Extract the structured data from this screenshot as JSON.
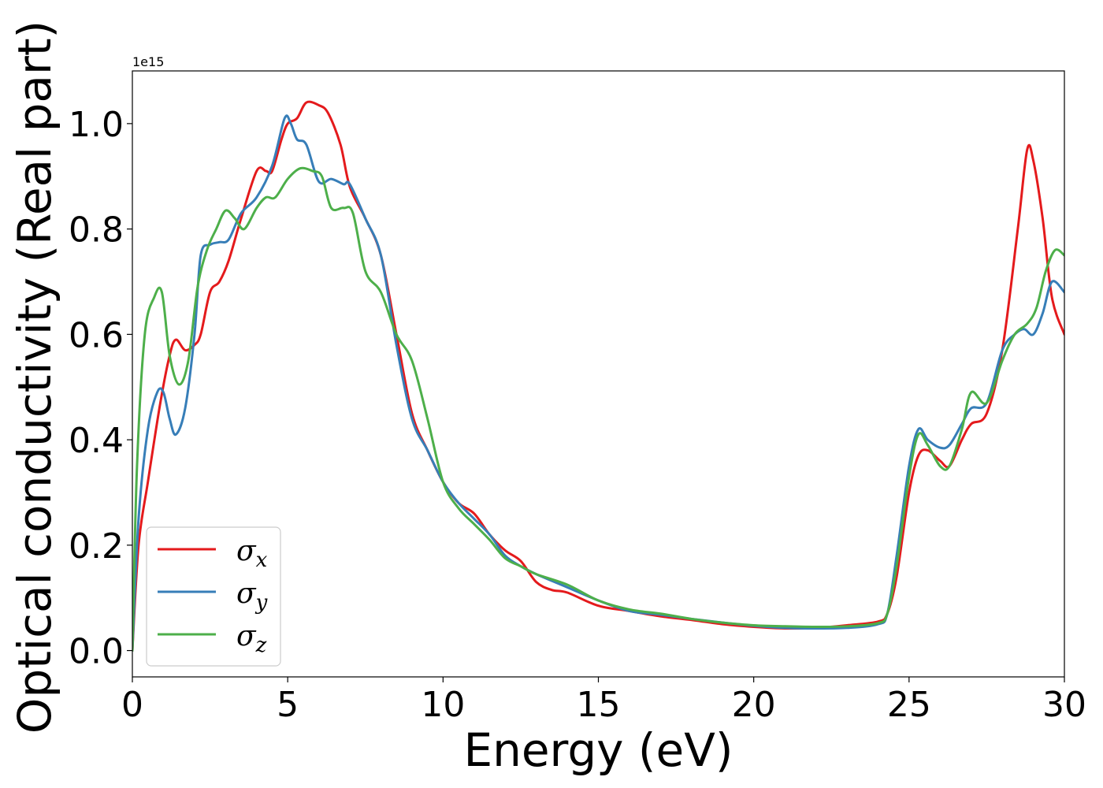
{
  "chart_data": {
    "type": "line",
    "title": "",
    "xlabel": "Energy (eV)",
    "ylabel": "Optical conductivity (Real part)",
    "y_offset_label": "1e15",
    "xlim": [
      0,
      30
    ],
    "ylim": [
      -0.05,
      1.1
    ],
    "x_ticks": [
      0,
      5,
      10,
      15,
      20,
      25,
      30
    ],
    "x_tick_labels": [
      "0",
      "5",
      "10",
      "15",
      "20",
      "25",
      "30"
    ],
    "y_ticks": [
      0.0,
      0.2,
      0.4,
      0.6,
      0.8,
      1.0
    ],
    "y_tick_labels": [
      "0.0",
      "0.2",
      "0.4",
      "0.6",
      "0.8",
      "1.0"
    ],
    "grid": false,
    "legend_position": "lower-left",
    "series": [
      {
        "name": "σx",
        "symbol": "σ",
        "subscript": "x",
        "color": "#e41a1c",
        "points": [
          [
            0,
            0
          ],
          [
            0.2,
            0.2
          ],
          [
            0.5,
            0.32
          ],
          [
            0.9,
            0.47
          ],
          [
            1.2,
            0.56
          ],
          [
            1.4,
            0.59
          ],
          [
            1.7,
            0.57
          ],
          [
            2.0,
            0.58
          ],
          [
            2.2,
            0.6
          ],
          [
            2.5,
            0.68
          ],
          [
            2.8,
            0.7
          ],
          [
            3.1,
            0.74
          ],
          [
            3.5,
            0.82
          ],
          [
            4.0,
            0.91
          ],
          [
            4.3,
            0.91
          ],
          [
            4.5,
            0.91
          ],
          [
            4.8,
            0.97
          ],
          [
            5.0,
            1.0
          ],
          [
            5.3,
            1.01
          ],
          [
            5.6,
            1.04
          ],
          [
            6.0,
            1.035
          ],
          [
            6.3,
            1.02
          ],
          [
            6.7,
            0.96
          ],
          [
            7.0,
            0.88
          ],
          [
            7.5,
            0.82
          ],
          [
            8.0,
            0.75
          ],
          [
            8.5,
            0.6
          ],
          [
            9.0,
            0.45
          ],
          [
            9.5,
            0.38
          ],
          [
            10.0,
            0.32
          ],
          [
            10.5,
            0.28
          ],
          [
            11.0,
            0.26
          ],
          [
            11.5,
            0.22
          ],
          [
            12.0,
            0.19
          ],
          [
            12.5,
            0.17
          ],
          [
            13.0,
            0.13
          ],
          [
            13.5,
            0.115
          ],
          [
            14.0,
            0.11
          ],
          [
            15.0,
            0.085
          ],
          [
            16.0,
            0.075
          ],
          [
            17.0,
            0.065
          ],
          [
            18.0,
            0.058
          ],
          [
            19.0,
            0.05
          ],
          [
            20.0,
            0.045
          ],
          [
            21.0,
            0.042
          ],
          [
            22.0,
            0.043
          ],
          [
            23.0,
            0.048
          ],
          [
            24.0,
            0.055
          ],
          [
            24.3,
            0.07
          ],
          [
            24.6,
            0.14
          ],
          [
            25.0,
            0.3
          ],
          [
            25.3,
            0.37
          ],
          [
            25.6,
            0.38
          ],
          [
            26.0,
            0.36
          ],
          [
            26.3,
            0.35
          ],
          [
            26.7,
            0.4
          ],
          [
            27.0,
            0.43
          ],
          [
            27.5,
            0.45
          ],
          [
            28.0,
            0.57
          ],
          [
            28.5,
            0.8
          ],
          [
            28.8,
            0.95
          ],
          [
            29.0,
            0.93
          ],
          [
            29.3,
            0.82
          ],
          [
            29.6,
            0.67
          ],
          [
            30.0,
            0.6
          ]
        ]
      },
      {
        "name": "σy",
        "symbol": "σ",
        "subscript": "y",
        "color": "#377eb8",
        "points": [
          [
            0,
            0
          ],
          [
            0.2,
            0.25
          ],
          [
            0.5,
            0.42
          ],
          [
            0.8,
            0.49
          ],
          [
            1.0,
            0.49
          ],
          [
            1.2,
            0.44
          ],
          [
            1.4,
            0.41
          ],
          [
            1.7,
            0.46
          ],
          [
            2.0,
            0.6
          ],
          [
            2.2,
            0.75
          ],
          [
            2.5,
            0.77
          ],
          [
            2.8,
            0.775
          ],
          [
            3.1,
            0.78
          ],
          [
            3.5,
            0.83
          ],
          [
            4.0,
            0.86
          ],
          [
            4.5,
            0.92
          ],
          [
            4.9,
            1.01
          ],
          [
            5.1,
            1.0
          ],
          [
            5.3,
            0.97
          ],
          [
            5.6,
            0.96
          ],
          [
            6.0,
            0.89
          ],
          [
            6.4,
            0.895
          ],
          [
            6.8,
            0.885
          ],
          [
            7.0,
            0.885
          ],
          [
            7.5,
            0.82
          ],
          [
            8.0,
            0.75
          ],
          [
            8.5,
            0.58
          ],
          [
            9.0,
            0.44
          ],
          [
            9.5,
            0.38
          ],
          [
            10.0,
            0.32
          ],
          [
            10.5,
            0.28
          ],
          [
            11.0,
            0.25
          ],
          [
            11.5,
            0.22
          ],
          [
            12.0,
            0.18
          ],
          [
            12.5,
            0.16
          ],
          [
            13.0,
            0.145
          ],
          [
            14.0,
            0.12
          ],
          [
            15.0,
            0.095
          ],
          [
            16.0,
            0.075
          ],
          [
            17.0,
            0.068
          ],
          [
            18.0,
            0.06
          ],
          [
            19.0,
            0.053
          ],
          [
            20.0,
            0.047
          ],
          [
            21.0,
            0.043
          ],
          [
            22.0,
            0.042
          ],
          [
            23.0,
            0.043
          ],
          [
            24.0,
            0.05
          ],
          [
            24.3,
            0.07
          ],
          [
            24.6,
            0.18
          ],
          [
            25.0,
            0.35
          ],
          [
            25.3,
            0.42
          ],
          [
            25.6,
            0.4
          ],
          [
            26.0,
            0.385
          ],
          [
            26.3,
            0.39
          ],
          [
            26.7,
            0.43
          ],
          [
            27.0,
            0.46
          ],
          [
            27.5,
            0.47
          ],
          [
            28.0,
            0.57
          ],
          [
            28.4,
            0.6
          ],
          [
            28.7,
            0.61
          ],
          [
            29.0,
            0.6
          ],
          [
            29.3,
            0.64
          ],
          [
            29.6,
            0.7
          ],
          [
            30.0,
            0.68
          ]
        ]
      },
      {
        "name": "σz",
        "symbol": "σ",
        "subscript": "z",
        "color": "#4daf4a",
        "points": [
          [
            0,
            0
          ],
          [
            0.15,
            0.35
          ],
          [
            0.4,
            0.6
          ],
          [
            0.7,
            0.67
          ],
          [
            0.95,
            0.68
          ],
          [
            1.2,
            0.56
          ],
          [
            1.5,
            0.505
          ],
          [
            1.8,
            0.55
          ],
          [
            2.1,
            0.69
          ],
          [
            2.4,
            0.76
          ],
          [
            2.7,
            0.8
          ],
          [
            3.0,
            0.835
          ],
          [
            3.3,
            0.82
          ],
          [
            3.6,
            0.8
          ],
          [
            4.0,
            0.84
          ],
          [
            4.3,
            0.86
          ],
          [
            4.6,
            0.86
          ],
          [
            5.0,
            0.895
          ],
          [
            5.4,
            0.915
          ],
          [
            5.8,
            0.91
          ],
          [
            6.1,
            0.9
          ],
          [
            6.4,
            0.84
          ],
          [
            6.8,
            0.84
          ],
          [
            7.1,
            0.83
          ],
          [
            7.5,
            0.72
          ],
          [
            8.0,
            0.68
          ],
          [
            8.5,
            0.6
          ],
          [
            9.0,
            0.55
          ],
          [
            9.5,
            0.44
          ],
          [
            10.0,
            0.32
          ],
          [
            10.5,
            0.27
          ],
          [
            11.0,
            0.24
          ],
          [
            11.5,
            0.21
          ],
          [
            12.0,
            0.175
          ],
          [
            12.5,
            0.16
          ],
          [
            13.0,
            0.145
          ],
          [
            14.0,
            0.125
          ],
          [
            15.0,
            0.095
          ],
          [
            16.0,
            0.078
          ],
          [
            17.0,
            0.07
          ],
          [
            18.0,
            0.06
          ],
          [
            19.0,
            0.053
          ],
          [
            20.0,
            0.048
          ],
          [
            21.0,
            0.046
          ],
          [
            22.0,
            0.045
          ],
          [
            23.0,
            0.046
          ],
          [
            24.0,
            0.052
          ],
          [
            24.3,
            0.07
          ],
          [
            24.6,
            0.16
          ],
          [
            25.0,
            0.33
          ],
          [
            25.3,
            0.41
          ],
          [
            25.6,
            0.39
          ],
          [
            26.0,
            0.35
          ],
          [
            26.3,
            0.35
          ],
          [
            26.7,
            0.42
          ],
          [
            27.0,
            0.49
          ],
          [
            27.5,
            0.47
          ],
          [
            28.0,
            0.55
          ],
          [
            28.4,
            0.6
          ],
          [
            28.8,
            0.62
          ],
          [
            29.1,
            0.65
          ],
          [
            29.4,
            0.72
          ],
          [
            29.7,
            0.76
          ],
          [
            30.0,
            0.75
          ]
        ]
      }
    ]
  }
}
